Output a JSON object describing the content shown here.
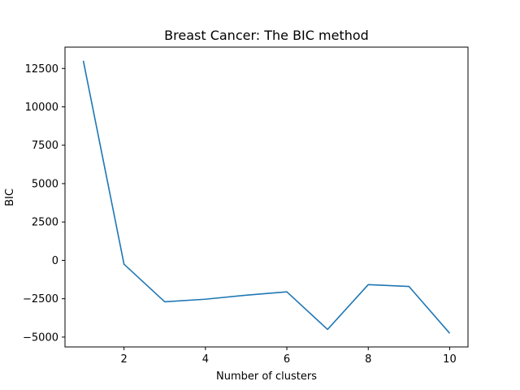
{
  "chart_data": {
    "type": "line",
    "title": "Breast Cancer: The BIC method",
    "xlabel": "Number of clusters",
    "ylabel": "BIC",
    "x": [
      1,
      2,
      3,
      4,
      5,
      6,
      7,
      8,
      9,
      10
    ],
    "series": [
      {
        "values": [
          13000,
          -250,
          -2700,
          -2530,
          -2270,
          -2050,
          -4500,
          -1580,
          -1700,
          -4750
        ],
        "color": "#1f77b4"
      }
    ],
    "xlim": [
      0.55,
      10.45
    ],
    "ylim": [
      -5640,
      13890
    ],
    "xticks": [
      2,
      4,
      6,
      8,
      10
    ],
    "yticks": [
      -5000,
      -2500,
      0,
      2500,
      5000,
      7500,
      10000,
      12500
    ],
    "grid": false,
    "legend": "none"
  }
}
